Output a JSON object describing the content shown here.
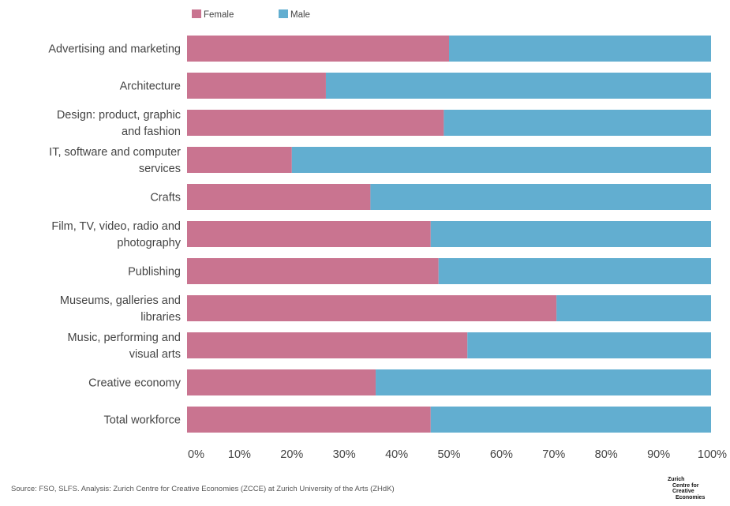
{
  "chart_data": {
    "type": "bar",
    "orientation": "horizontal",
    "stacked": true,
    "normalized": true,
    "title": "",
    "xlabel": "",
    "ylabel": "",
    "xlim": [
      0,
      100
    ],
    "grid": false,
    "legend_position": "top",
    "categories": [
      [
        "Advertising and marketing"
      ],
      [
        "Architecture"
      ],
      [
        "Design: product, graphic",
        "and fashion"
      ],
      [
        "IT, software and computer",
        "services"
      ],
      [
        "Crafts"
      ],
      [
        "Film, TV, video, radio and",
        "photography"
      ],
      [
        "Publishing"
      ],
      [
        "Museums, galleries and",
        "libraries"
      ],
      [
        "Music, performing and",
        "visual arts"
      ],
      [
        "Creative economy"
      ],
      [
        "Total workforce"
      ]
    ],
    "series": [
      {
        "name": "Female",
        "color": "#c97490",
        "values": [
          50,
          26.5,
          49,
          20,
          35,
          46.5,
          48,
          70.5,
          53.5,
          36,
          46.5
        ]
      },
      {
        "name": "Male",
        "color": "#62aed0",
        "values": [
          50,
          73.5,
          51,
          80,
          65,
          53.5,
          52,
          29.5,
          46.5,
          64,
          53.5
        ]
      }
    ],
    "x_tick_labels": [
      "0%",
      "10%",
      "20%",
      "30%",
      "40%",
      "50%",
      "60%",
      "70%",
      "80%",
      "90%",
      "100%"
    ]
  },
  "source": "Source: FSO, SLFS. Analysis: Zurich Centre for Creative Economies (ZCCE) at Zurich University of the Arts (ZHdK)",
  "logo": {
    "line1": "Zurich",
    "line2": "Centre for",
    "line3": "Creative",
    "line4": "Economies"
  }
}
